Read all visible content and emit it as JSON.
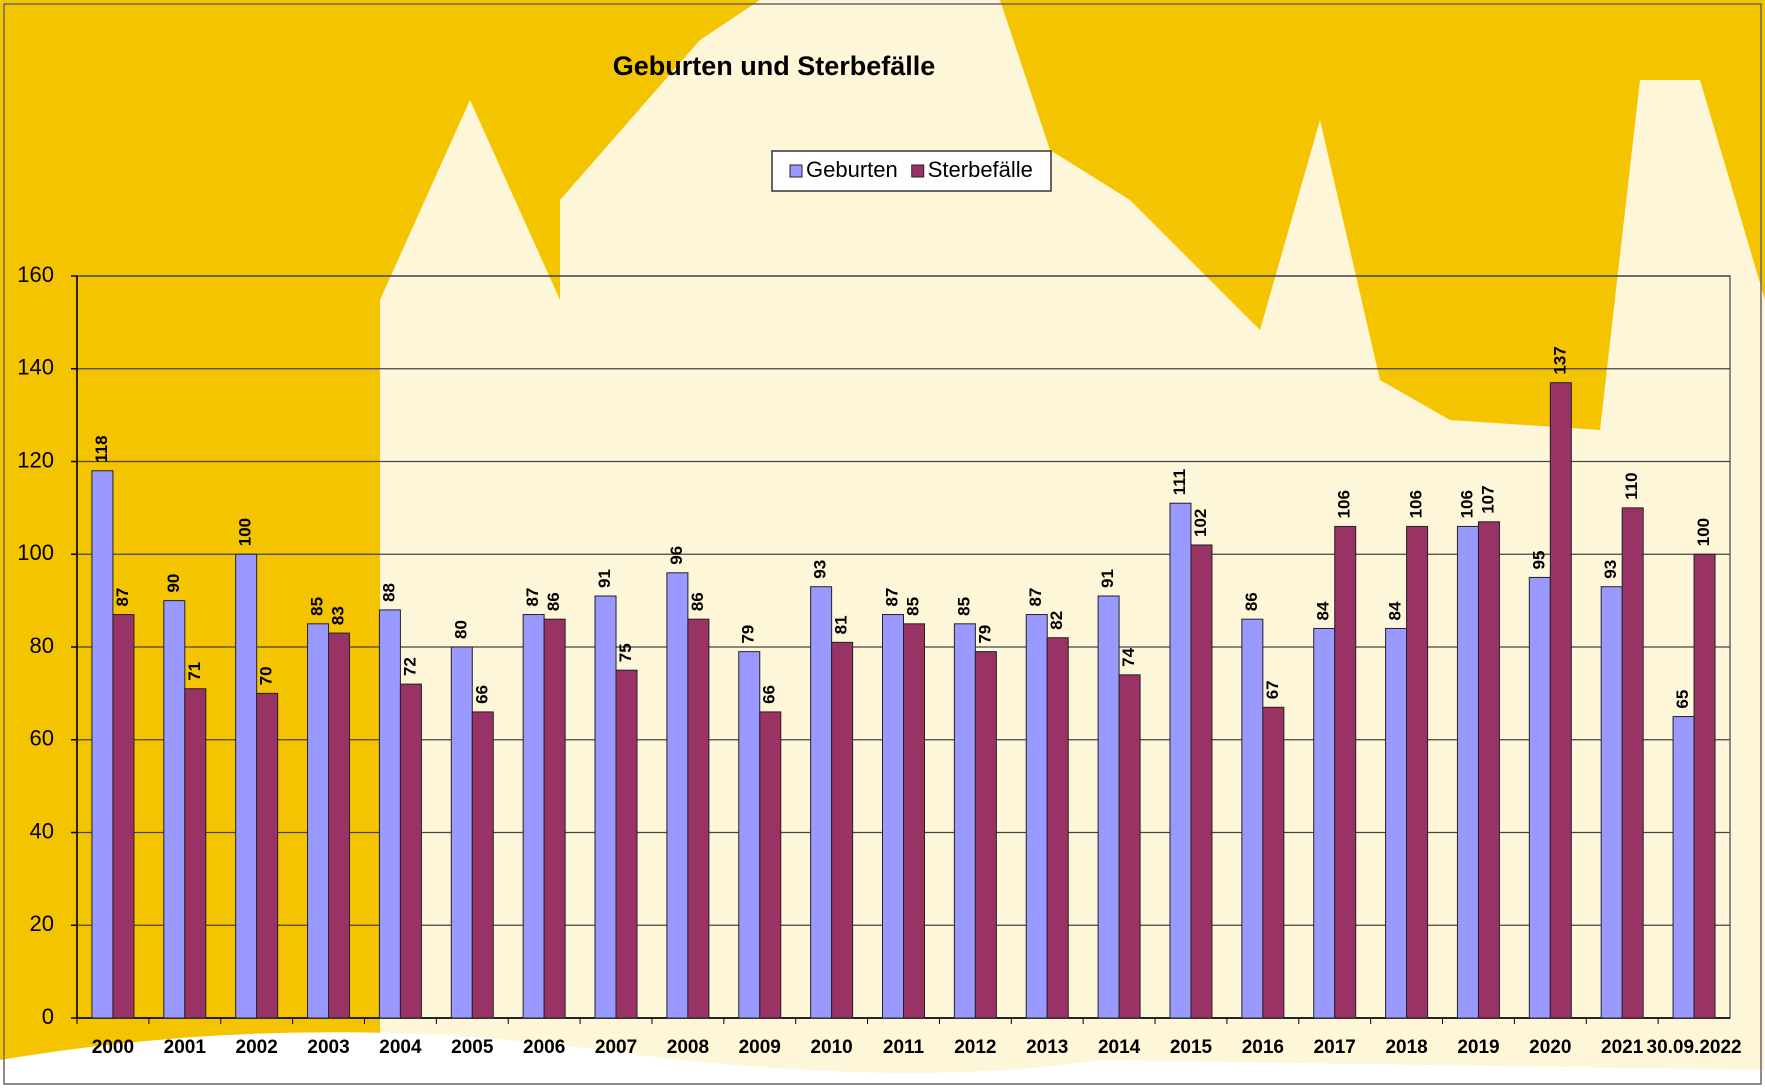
{
  "chart_data": {
    "type": "bar",
    "title": "Geburten und Sterbefälle",
    "categories": [
      "2000",
      "2001",
      "2002",
      "2003",
      "2004",
      "2005",
      "2006",
      "2007",
      "2008",
      "2009",
      "2010",
      "2011",
      "2012",
      "2013",
      "2014",
      "2015",
      "2016",
      "2017",
      "2018",
      "2019",
      "2020",
      "2021",
      "30.09.2022"
    ],
    "series": [
      {
        "name": "Geburten",
        "color": "#9999ff",
        "values": [
          118,
          90,
          100,
          85,
          88,
          80,
          87,
          91,
          96,
          79,
          93,
          87,
          85,
          87,
          91,
          111,
          86,
          84,
          84,
          106,
          95,
          93,
          65
        ]
      },
      {
        "name": "Sterbefälle",
        "color": "#993366",
        "values": [
          87,
          71,
          70,
          83,
          72,
          66,
          86,
          75,
          86,
          66,
          81,
          85,
          79,
          82,
          74,
          102,
          67,
          106,
          106,
          107,
          137,
          110,
          100
        ]
      }
    ],
    "ylim": [
      0,
      160
    ],
    "yticks": [
      0,
      20,
      40,
      60,
      80,
      100,
      120,
      140,
      160
    ],
    "grid": true,
    "legend": "top"
  }
}
